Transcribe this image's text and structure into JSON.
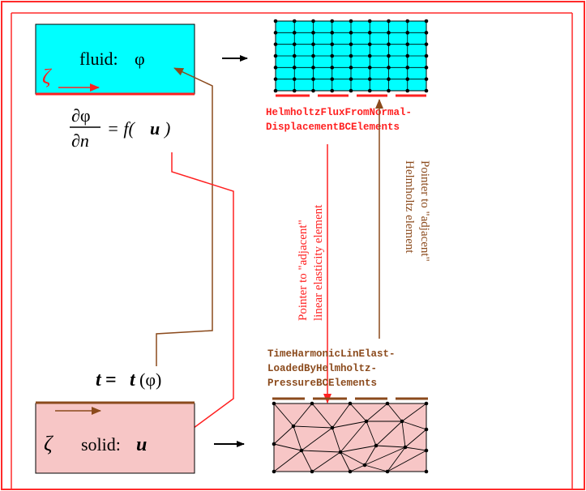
{
  "colors": {
    "frame_border": "#ff2a2a",
    "fluid_fill": "#00ffff",
    "solid_fill": "#f7c6c6",
    "red": "#ff2020",
    "brown": "#8b4a1c",
    "black": "#000000"
  },
  "fluid_box": {
    "label": "fluid:",
    "symbol": "φ",
    "zeta": "ζ"
  },
  "solid_box": {
    "label": "solid:",
    "symbol": "u",
    "zeta": "ζ"
  },
  "flux_equation": {
    "numerator": "∂φ",
    "denominator": "∂n",
    "rhs": "= f(",
    "rhs_var": "u",
    "rhs_close": ")"
  },
  "traction_equation": {
    "lhs": "t",
    "eq": " = ",
    "rhs": "t",
    "arg": " (φ)"
  },
  "fluid_element_label": {
    "line1": "HelmholtzFluxFromNormal-",
    "line2": "DisplacementBCElements"
  },
  "solid_element_label": {
    "line1": "TimeHarmonicLinElast-",
    "line2": "LoadedByHelmholtz-",
    "line3": "PressureBCElements"
  },
  "pointer_to_elasticity": {
    "line1": "Pointer to \"adjacent\"",
    "line2": "linear elasticity element"
  },
  "pointer_to_helmholtz": {
    "line1": "Pointer to \"adjacent\"",
    "line2": "Helmholtz element"
  }
}
